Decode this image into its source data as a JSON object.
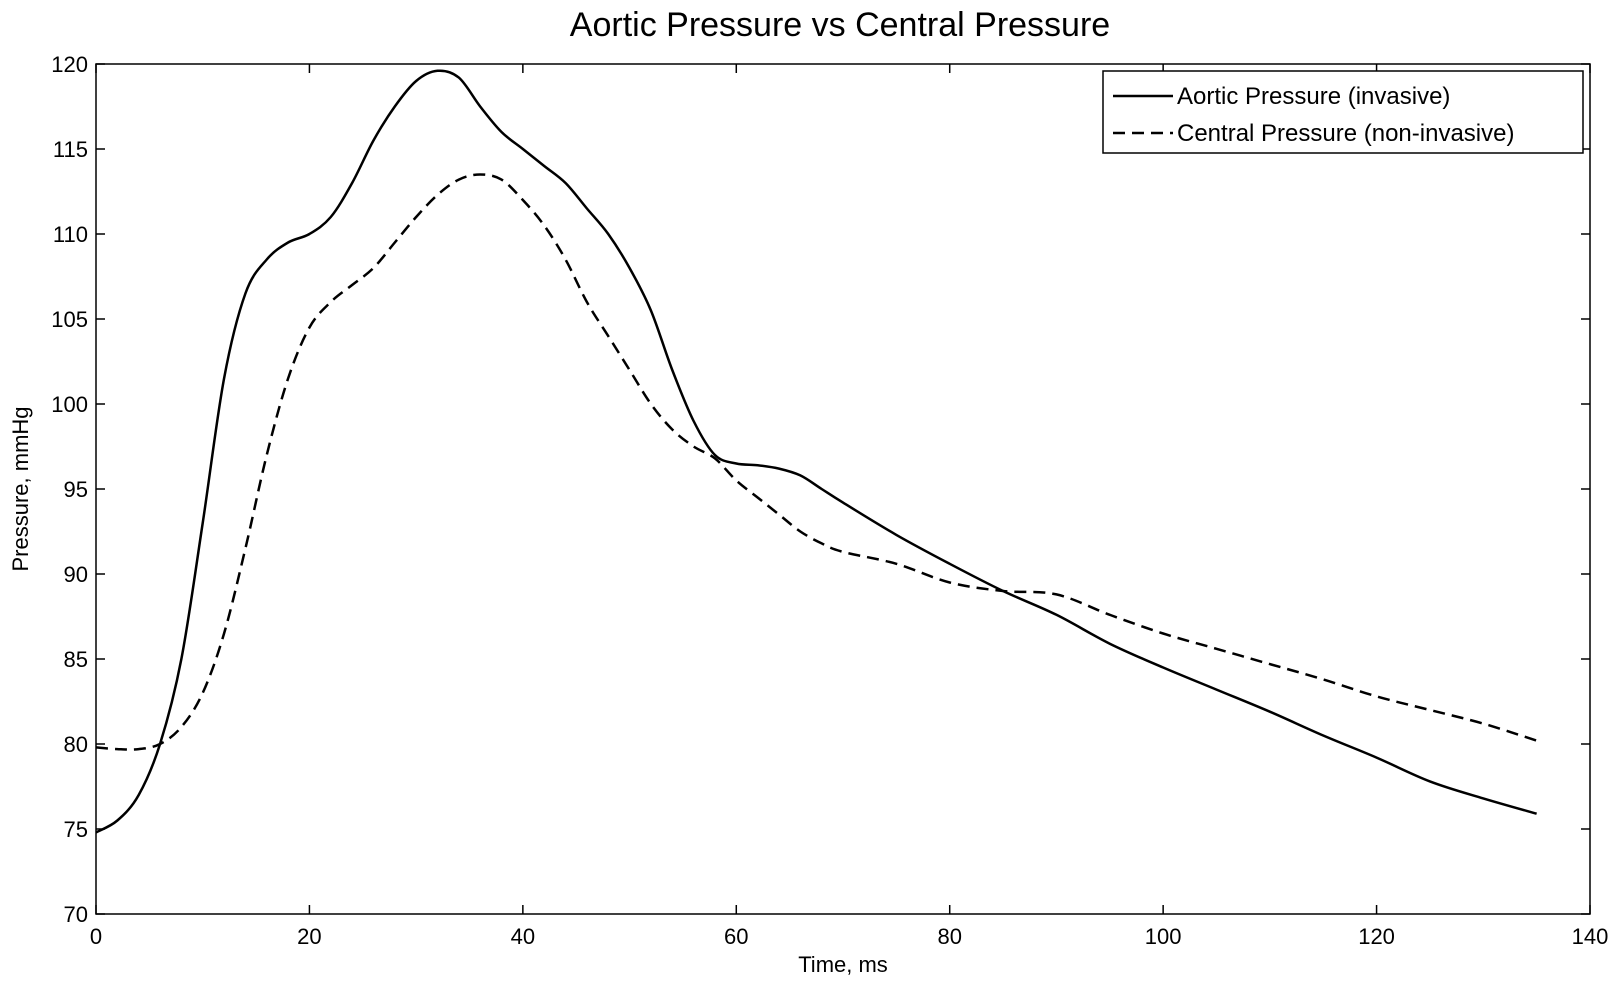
{
  "chart_data": {
    "type": "line",
    "title": "Aortic Pressure vs Central Pressure",
    "xlabel": "Time, ms",
    "ylabel": "Pressure, mmHg",
    "xlim": [
      0,
      140
    ],
    "ylim": [
      70,
      120
    ],
    "xticks": [
      0,
      20,
      40,
      60,
      80,
      100,
      120,
      140
    ],
    "yticks": [
      70,
      75,
      80,
      85,
      90,
      95,
      100,
      105,
      110,
      115,
      120
    ],
    "grid": false,
    "legend_position": "top-right",
    "series": [
      {
        "name": "Aortic Pressure (invasive)",
        "style": "solid",
        "color": "#000000",
        "x": [
          0,
          2,
          4,
          6,
          8,
          10,
          12,
          14,
          16,
          18,
          20,
          22,
          24,
          26,
          28,
          30,
          32,
          34,
          36,
          38,
          40,
          42,
          44,
          46,
          48,
          50,
          52,
          54,
          56,
          58,
          60,
          62,
          64,
          66,
          68,
          70,
          75,
          80,
          85,
          90,
          95,
          100,
          105,
          110,
          115,
          120,
          125,
          130,
          135
        ],
        "y": [
          74.8,
          75.5,
          77.0,
          80.0,
          85.0,
          93.0,
          101.5,
          106.5,
          108.5,
          109.5,
          110.0,
          111.0,
          113.0,
          115.5,
          117.5,
          119.0,
          119.6,
          119.2,
          117.5,
          116.0,
          115.0,
          114.0,
          113.0,
          111.5,
          110.0,
          108.0,
          105.5,
          102.0,
          99.0,
          97.0,
          96.5,
          96.4,
          96.2,
          95.8,
          95.0,
          94.2,
          92.3,
          90.6,
          89.0,
          87.6,
          85.9,
          84.5,
          83.2,
          81.9,
          80.5,
          79.2,
          77.8,
          76.8,
          75.9
        ]
      },
      {
        "name": "Central Pressure (non-invasive)",
        "style": "dashed",
        "color": "#000000",
        "x": [
          0,
          2,
          4,
          6,
          8,
          10,
          12,
          14,
          16,
          18,
          20,
          22,
          24,
          26,
          28,
          30,
          32,
          34,
          36,
          38,
          40,
          42,
          44,
          46,
          48,
          50,
          52,
          54,
          56,
          58,
          60,
          62,
          64,
          66,
          68,
          70,
          75,
          80,
          85,
          90,
          95,
          100,
          105,
          110,
          115,
          120,
          125,
          130,
          135
        ],
        "y": [
          79.8,
          79.7,
          79.7,
          80.0,
          81.0,
          83.0,
          86.5,
          91.5,
          97.0,
          101.5,
          104.5,
          106.0,
          107.0,
          108.0,
          109.5,
          111.0,
          112.3,
          113.2,
          113.5,
          113.2,
          112.0,
          110.5,
          108.5,
          106.0,
          104.0,
          102.0,
          100.0,
          98.5,
          97.5,
          96.8,
          95.5,
          94.5,
          93.5,
          92.5,
          91.8,
          91.3,
          90.6,
          89.5,
          89.0,
          88.8,
          87.6,
          86.5,
          85.6,
          84.7,
          83.8,
          82.8,
          82.0,
          81.2,
          80.2
        ]
      }
    ]
  }
}
